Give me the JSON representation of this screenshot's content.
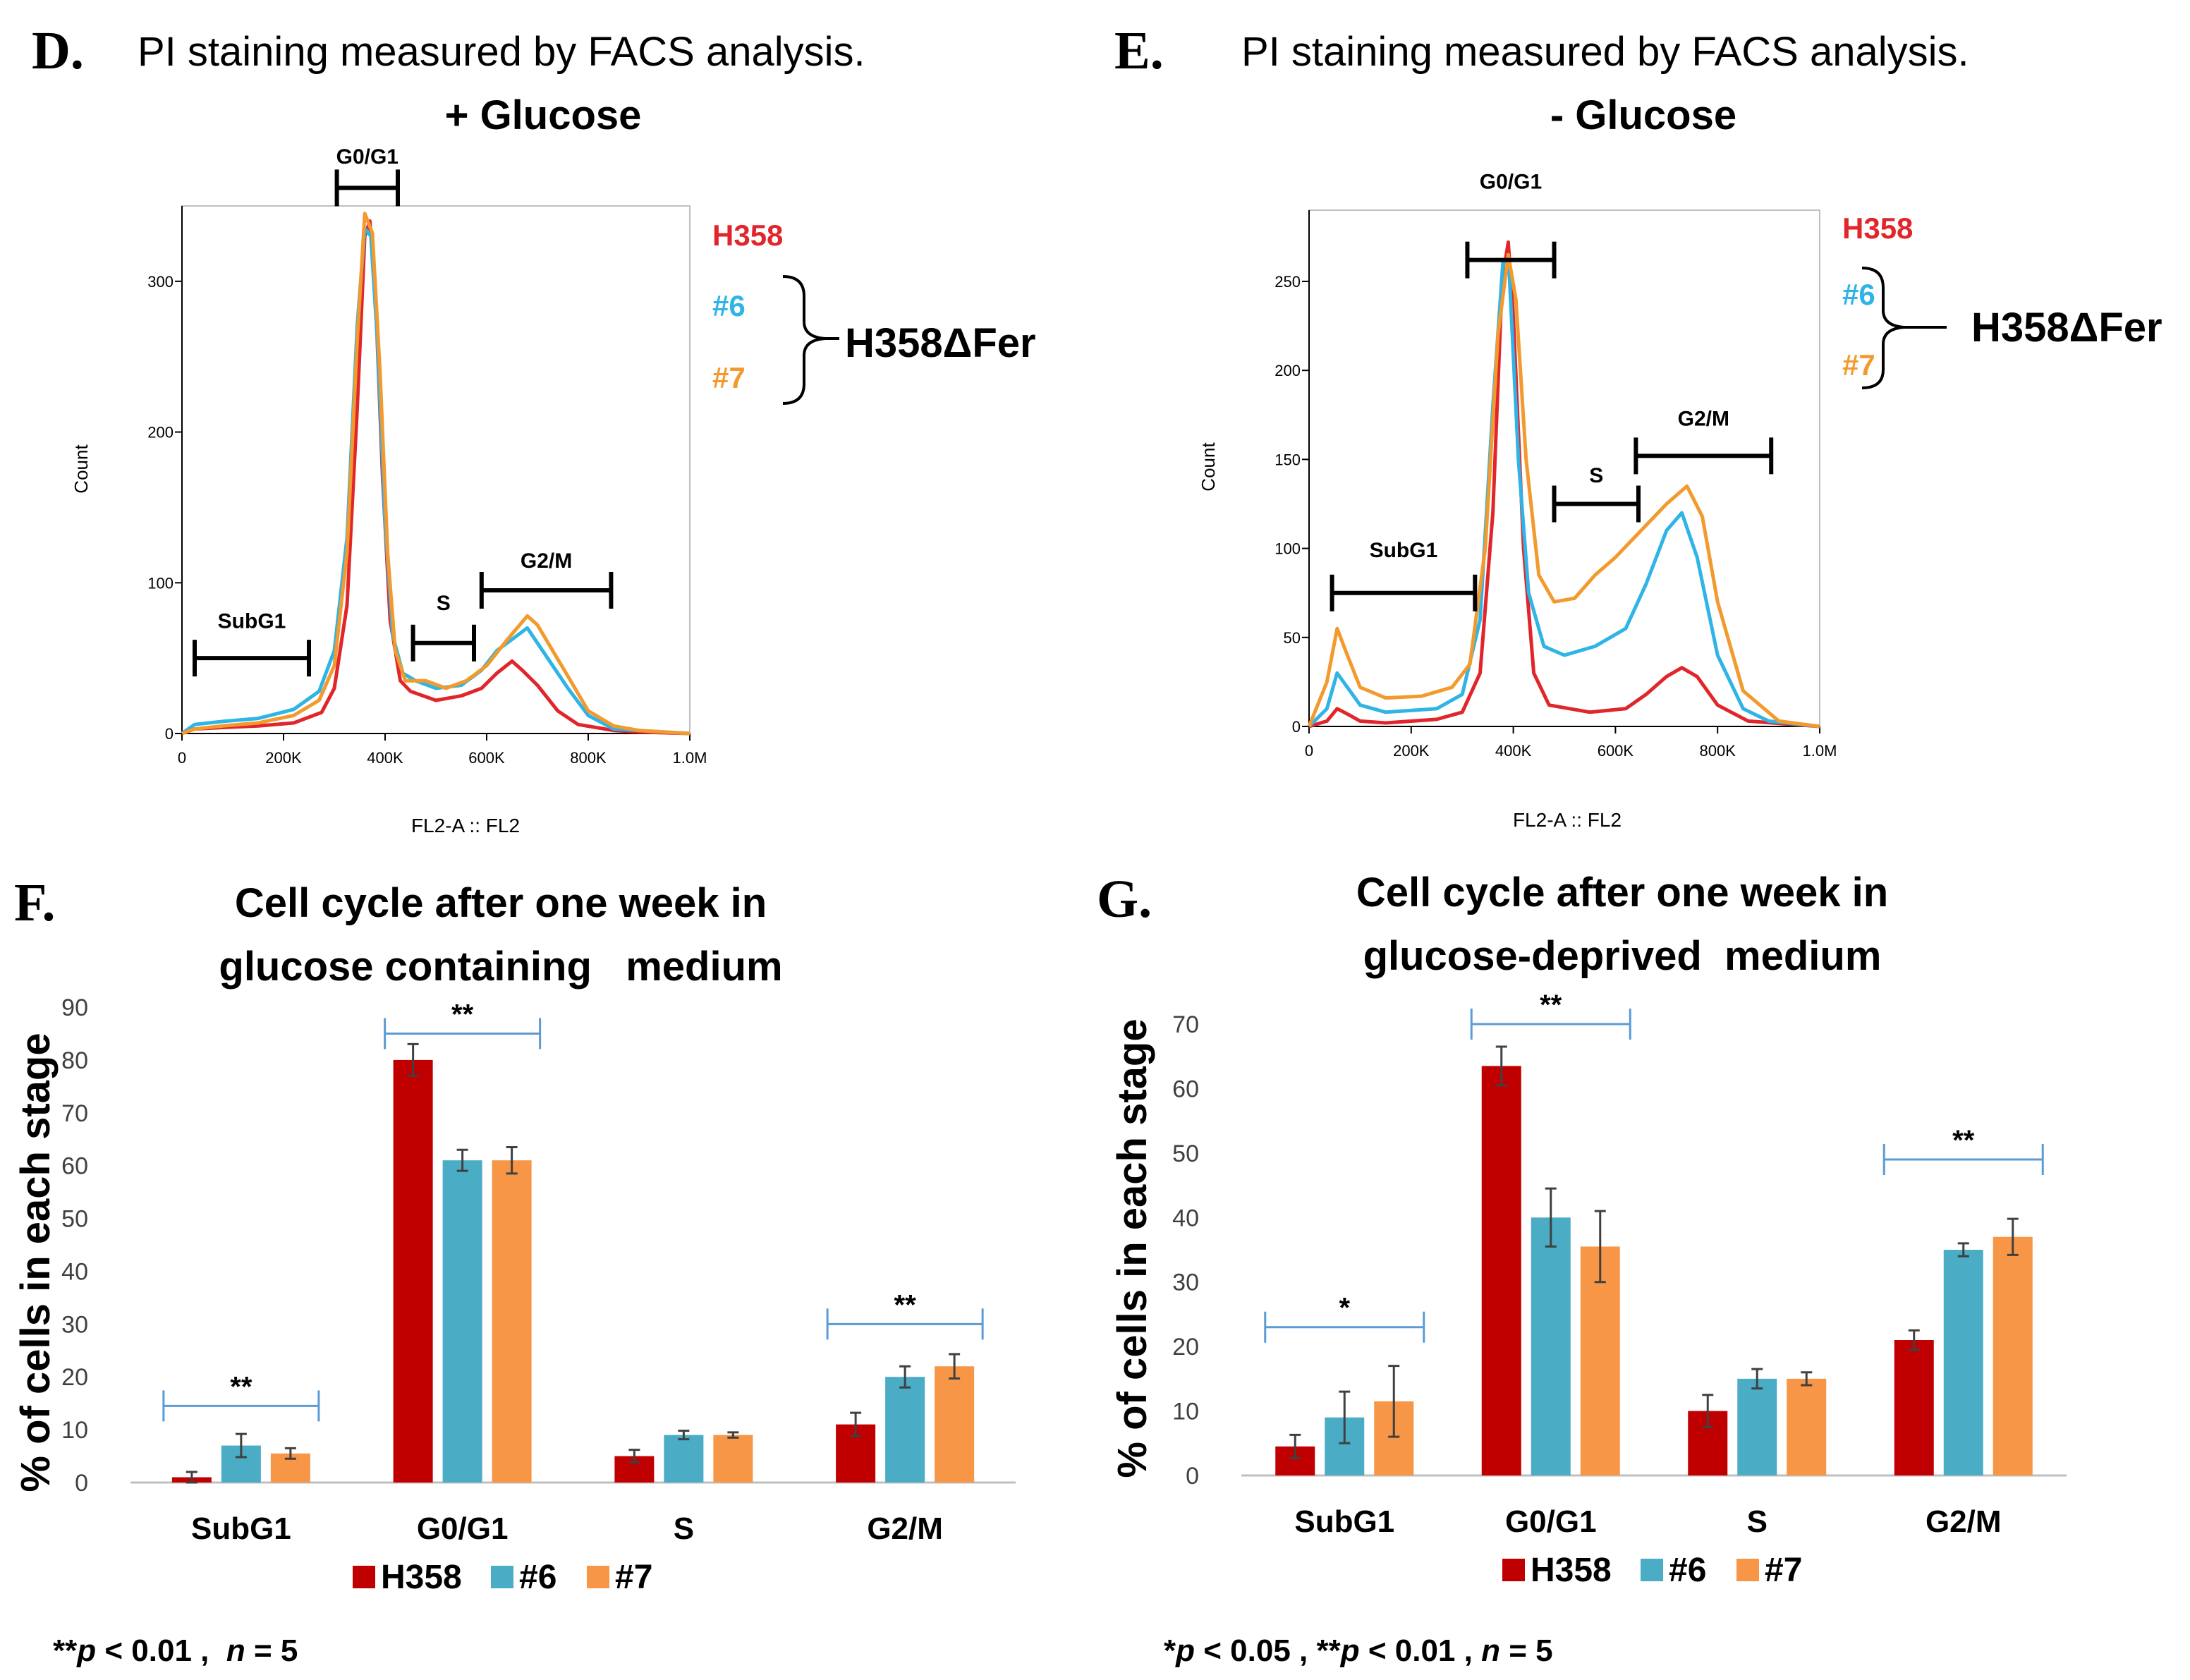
{
  "colors": {
    "h358": "#c00000",
    "c6": "#4bacc6",
    "c7": "#f79646",
    "h358_line": "#e0262b",
    "c6_line": "#2fb4e6",
    "c7_line": "#f39a2e",
    "sig_line": "#5b9bd5",
    "axis": "#000000",
    "grid_axis": "#bfbfbf"
  },
  "panel_d": {
    "letter": "D.",
    "title": "PI staining measured by FACS analysis.",
    "subtitle": "+ Glucose",
    "ylabel": "Count",
    "xlabel": "FL2-A :: FL2",
    "ymax": 350,
    "yticks": [
      "0",
      "100",
      "200",
      "300"
    ],
    "ytick_values": [
      0,
      100,
      200,
      300
    ],
    "xticks": [
      "0",
      "200K",
      "400K",
      "600K",
      "800K",
      "1.0M"
    ],
    "xtick_values": [
      0,
      200,
      400,
      600,
      800,
      1000
    ],
    "gates": [
      {
        "label": "SubG1",
        "x0": 25,
        "x1": 250,
        "y": 50,
        "label_y": 70
      },
      {
        "label": "G0/G1",
        "x0": 305,
        "x1": 425,
        "y": 362,
        "label_y": 378
      },
      {
        "label": "S",
        "x0": 455,
        "x1": 575,
        "y": 60,
        "label_y": 82
      },
      {
        "label": "G2/M",
        "x0": 590,
        "x1": 845,
        "y": 95,
        "label_y": 110
      }
    ],
    "legend": {
      "h358": "H358",
      "c6": "#6",
      "c7": "#7",
      "group": "H358ΔFer"
    },
    "series": [
      {
        "name": "H358",
        "key": "h358_line",
        "points": [
          [
            0,
            0
          ],
          [
            25,
            3
          ],
          [
            80,
            4
          ],
          [
            150,
            5
          ],
          [
            220,
            7
          ],
          [
            275,
            14
          ],
          [
            300,
            30
          ],
          [
            325,
            85
          ],
          [
            345,
            215
          ],
          [
            360,
            330
          ],
          [
            370,
            340
          ],
          [
            380,
            300
          ],
          [
            395,
            170
          ],
          [
            410,
            75
          ],
          [
            430,
            35
          ],
          [
            450,
            28
          ],
          [
            500,
            22
          ],
          [
            550,
            25
          ],
          [
            590,
            30
          ],
          [
            620,
            40
          ],
          [
            650,
            48
          ],
          [
            670,
            42
          ],
          [
            700,
            32
          ],
          [
            740,
            15
          ],
          [
            780,
            6
          ],
          [
            850,
            2
          ],
          [
            900,
            1
          ],
          [
            1000,
            0
          ]
        ]
      },
      {
        "name": "#6",
        "key": "c6_line",
        "points": [
          [
            0,
            0
          ],
          [
            25,
            6
          ],
          [
            80,
            8
          ],
          [
            150,
            10
          ],
          [
            220,
            16
          ],
          [
            270,
            28
          ],
          [
            300,
            55
          ],
          [
            325,
            130
          ],
          [
            345,
            270
          ],
          [
            360,
            335
          ],
          [
            372,
            330
          ],
          [
            385,
            260
          ],
          [
            400,
            140
          ],
          [
            415,
            65
          ],
          [
            435,
            40
          ],
          [
            460,
            35
          ],
          [
            500,
            30
          ],
          [
            550,
            32
          ],
          [
            590,
            42
          ],
          [
            620,
            55
          ],
          [
            660,
            65
          ],
          [
            680,
            70
          ],
          [
            700,
            60
          ],
          [
            730,
            45
          ],
          [
            760,
            30
          ],
          [
            800,
            12
          ],
          [
            850,
            3
          ],
          [
            1000,
            0
          ]
        ]
      },
      {
        "name": "#7",
        "key": "c7_line",
        "points": [
          [
            0,
            0
          ],
          [
            25,
            3
          ],
          [
            80,
            5
          ],
          [
            150,
            7
          ],
          [
            220,
            12
          ],
          [
            270,
            22
          ],
          [
            300,
            45
          ],
          [
            325,
            120
          ],
          [
            345,
            260
          ],
          [
            360,
            345
          ],
          [
            375,
            332
          ],
          [
            390,
            240
          ],
          [
            405,
            120
          ],
          [
            420,
            55
          ],
          [
            440,
            35
          ],
          [
            480,
            35
          ],
          [
            520,
            30
          ],
          [
            560,
            35
          ],
          [
            600,
            45
          ],
          [
            640,
            62
          ],
          [
            680,
            78
          ],
          [
            700,
            72
          ],
          [
            730,
            55
          ],
          [
            760,
            38
          ],
          [
            800,
            15
          ],
          [
            850,
            5
          ],
          [
            900,
            2
          ],
          [
            1000,
            0
          ]
        ]
      }
    ]
  },
  "panel_e": {
    "letter": "E.",
    "title": "PI staining measured by FACS analysis.",
    "subtitle": "- Glucose",
    "ylabel": "Count",
    "xlabel": "FL2-A :: FL2",
    "ymax": 290,
    "yticks": [
      "0",
      "50",
      "100",
      "150",
      "200",
      "250"
    ],
    "ytick_values": [
      0,
      50,
      100,
      150,
      200,
      250
    ],
    "xticks": [
      "0",
      "200K",
      "400K",
      "600K",
      "800K",
      "1.0M"
    ],
    "xtick_values": [
      0,
      200,
      400,
      600,
      800,
      1000
    ],
    "gates": [
      {
        "label": "SubG1",
        "x0": 45,
        "x1": 325,
        "y": 75,
        "label_y": 95
      },
      {
        "label": "G0/G1",
        "x0": 310,
        "x1": 480,
        "y": 262,
        "label_y": 302
      },
      {
        "label": "S",
        "x0": 480,
        "x1": 645,
        "y": 125,
        "label_y": 137
      },
      {
        "label": "G2/M",
        "x0": 640,
        "x1": 905,
        "y": 152,
        "label_y": 169
      }
    ],
    "legend": {
      "h358": "H358",
      "c6": "#6",
      "c7": "#7",
      "group": "H358ΔFer"
    },
    "series": [
      {
        "name": "H358",
        "key": "h358_line",
        "points": [
          [
            0,
            0
          ],
          [
            35,
            3
          ],
          [
            55,
            10
          ],
          [
            75,
            7
          ],
          [
            100,
            3
          ],
          [
            150,
            2
          ],
          [
            250,
            4
          ],
          [
            300,
            8
          ],
          [
            335,
            30
          ],
          [
            360,
            120
          ],
          [
            378,
            250
          ],
          [
            390,
            272
          ],
          [
            400,
            230
          ],
          [
            420,
            100
          ],
          [
            440,
            30
          ],
          [
            470,
            12
          ],
          [
            550,
            8
          ],
          [
            620,
            10
          ],
          [
            660,
            18
          ],
          [
            700,
            28
          ],
          [
            730,
            33
          ],
          [
            760,
            28
          ],
          [
            800,
            12
          ],
          [
            860,
            3
          ],
          [
            1000,
            0
          ]
        ]
      },
      {
        "name": "#6",
        "key": "c6_line",
        "points": [
          [
            0,
            0
          ],
          [
            35,
            10
          ],
          [
            55,
            30
          ],
          [
            75,
            22
          ],
          [
            100,
            12
          ],
          [
            150,
            8
          ],
          [
            250,
            10
          ],
          [
            300,
            18
          ],
          [
            335,
            60
          ],
          [
            360,
            180
          ],
          [
            380,
            262
          ],
          [
            392,
            255
          ],
          [
            410,
            150
          ],
          [
            430,
            75
          ],
          [
            460,
            45
          ],
          [
            500,
            40
          ],
          [
            560,
            45
          ],
          [
            620,
            55
          ],
          [
            660,
            80
          ],
          [
            700,
            110
          ],
          [
            730,
            120
          ],
          [
            760,
            95
          ],
          [
            800,
            40
          ],
          [
            850,
            10
          ],
          [
            900,
            3
          ],
          [
            1000,
            0
          ]
        ]
      },
      {
        "name": "#7",
        "key": "c7_line",
        "points": [
          [
            0,
            0
          ],
          [
            35,
            25
          ],
          [
            55,
            55
          ],
          [
            75,
            40
          ],
          [
            100,
            22
          ],
          [
            150,
            16
          ],
          [
            220,
            17
          ],
          [
            280,
            22
          ],
          [
            315,
            35
          ],
          [
            345,
            100
          ],
          [
            370,
            220
          ],
          [
            390,
            265
          ],
          [
            405,
            240
          ],
          [
            425,
            150
          ],
          [
            450,
            85
          ],
          [
            480,
            70
          ],
          [
            520,
            72
          ],
          [
            560,
            85
          ],
          [
            600,
            95
          ],
          [
            650,
            110
          ],
          [
            700,
            125
          ],
          [
            740,
            135
          ],
          [
            770,
            118
          ],
          [
            800,
            70
          ],
          [
            850,
            20
          ],
          [
            920,
            3
          ],
          [
            1000,
            0
          ]
        ]
      }
    ]
  },
  "panel_f": {
    "letter": "F.",
    "title_line1": "Cell cycle after one week in",
    "title_line2": "glucose containing   medium",
    "ylabel": "% of cells in each stage",
    "ymax": 90,
    "yticks": [
      "0",
      "10",
      "20",
      "30",
      "40",
      "50",
      "60",
      "70",
      "80",
      "90"
    ],
    "ytick_values": [
      0,
      10,
      20,
      30,
      40,
      50,
      60,
      70,
      80,
      90
    ],
    "footnote_pre": "**",
    "footnote_p": "p",
    "footnote_mid": " < 0.01 ,  ",
    "footnote_n": "n",
    "footnote_post": " = 5"
  },
  "panel_g": {
    "letter": "G.",
    "title_line1": "Cell cycle after one week in",
    "title_line2": "glucose-deprived  medium",
    "ylabel": "% of cells in each stage",
    "ymax": 70,
    "yticks": [
      "0",
      "10",
      "20",
      "30",
      "40",
      "50",
      "60",
      "70"
    ],
    "ytick_values": [
      0,
      10,
      20,
      30,
      40,
      50,
      60,
      70
    ],
    "footnote_a": "*",
    "footnote_p1": "p",
    "footnote_b": " < 0.05 , **",
    "footnote_p2": "p",
    "footnote_c": " < 0.01 , ",
    "footnote_n": "n",
    "footnote_d": " = 5"
  },
  "chart_data": [
    {
      "id": "D",
      "type": "line",
      "title": "PI staining measured by FACS analysis. + Glucose",
      "xlabel": "FL2-A :: FL2",
      "ylabel": "Count",
      "xlim": [
        0,
        1000000
      ],
      "ylim": [
        0,
        350
      ],
      "series_names": [
        "H358",
        "#6",
        "#7"
      ],
      "gates": [
        "SubG1",
        "G0/G1",
        "S",
        "G2/M"
      ]
    },
    {
      "id": "E",
      "type": "line",
      "title": "PI staining measured by FACS analysis. - Glucose",
      "xlabel": "FL2-A :: FL2",
      "ylabel": "Count",
      "xlim": [
        0,
        1000000
      ],
      "ylim": [
        0,
        290
      ],
      "series_names": [
        "H358",
        "#6",
        "#7"
      ],
      "gates": [
        "SubG1",
        "G0/G1",
        "S",
        "G2/M"
      ]
    },
    {
      "id": "F",
      "type": "bar",
      "title": "Cell cycle after one week in glucose containing medium",
      "xlabel": "",
      "ylabel": "% of cells in each stage",
      "ylim": [
        0,
        90
      ],
      "categories": [
        "SubG1",
        "G0/G1",
        "S",
        "G2/M"
      ],
      "series": [
        {
          "name": "H358",
          "color_key": "h358",
          "values": [
            1,
            80,
            5,
            11
          ],
          "errors": [
            1,
            3,
            1.2,
            2.2
          ]
        },
        {
          "name": "#6",
          "color_key": "c6",
          "values": [
            7,
            61,
            9,
            20
          ],
          "errors": [
            2.2,
            2,
            0.8,
            2
          ]
        },
        {
          "name": "#7",
          "color_key": "c7",
          "values": [
            5.5,
            61,
            9,
            22
          ],
          "errors": [
            1,
            2.5,
            0.5,
            2.3
          ]
        }
      ],
      "significance": [
        {
          "category": "SubG1",
          "label": "**",
          "y": 14.5
        },
        {
          "category": "G0/G1",
          "label": "**",
          "y": 85
        },
        {
          "category": "G2/M",
          "label": "**",
          "y": 30
        }
      ]
    },
    {
      "id": "G",
      "type": "bar",
      "title": "Cell cycle after one week in glucose-deprived medium",
      "xlabel": "",
      "ylabel": "% of cells in each stage",
      "ylim": [
        0,
        70
      ],
      "categories": [
        "SubG1",
        "G0/G1",
        "S",
        "G2/M"
      ],
      "series": [
        {
          "name": "H358",
          "color_key": "h358",
          "values": [
            4.5,
            63.5,
            10,
            21
          ],
          "errors": [
            1.8,
            3,
            2.5,
            1.5
          ]
        },
        {
          "name": "#6",
          "color_key": "c6",
          "values": [
            9,
            40,
            15,
            35
          ],
          "errors": [
            4,
            4.5,
            1.5,
            1
          ]
        },
        {
          "name": "#7",
          "color_key": "c7",
          "values": [
            11.5,
            35.5,
            15,
            37
          ],
          "errors": [
            5.5,
            5.5,
            1,
            2.8
          ]
        }
      ],
      "significance": [
        {
          "category": "SubG1",
          "label": "*",
          "y": 23
        },
        {
          "category": "G0/G1",
          "label": "**",
          "y": 70
        },
        {
          "category": "G2/M",
          "label": "**",
          "y": 49
        }
      ]
    }
  ]
}
